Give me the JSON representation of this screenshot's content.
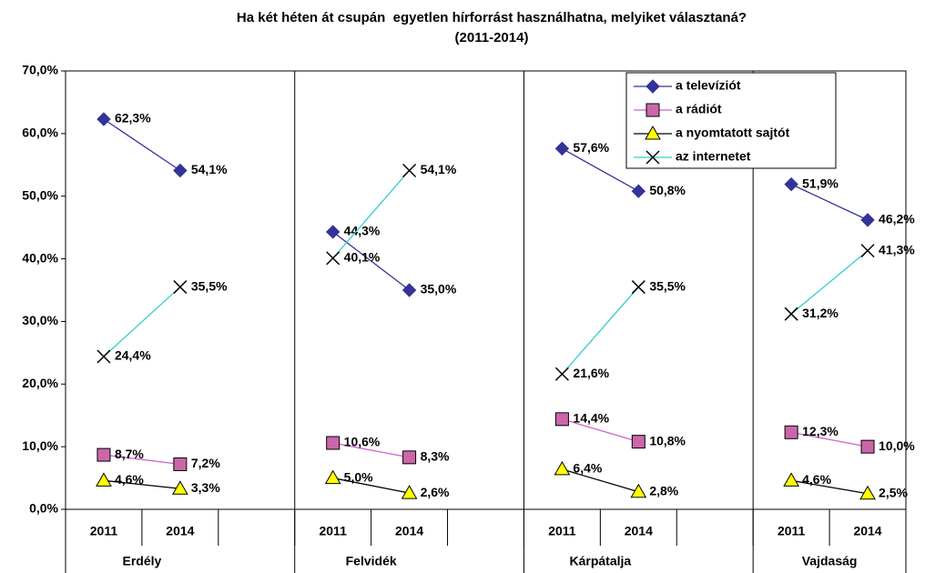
{
  "chart_data": {
    "type": "line",
    "title": "Ha két héten át csupán  egyetlen hírforrást használhatna, melyiket választaná?",
    "subtitle": "(2011-2014)",
    "categories": [
      "2011",
      "2014",
      null,
      "2011",
      "2014",
      null,
      "2011",
      "2014",
      null,
      "2011",
      "2014"
    ],
    "groups": [
      "Erdély",
      "Felvidék",
      "Kárpátalja",
      "Vajdaság"
    ],
    "ylim": [
      0,
      70
    ],
    "yticks": [
      {
        "value": 0,
        "label": "0,0%"
      },
      {
        "value": 10,
        "label": "10,0%"
      },
      {
        "value": 20,
        "label": "20,0%"
      },
      {
        "value": 30,
        "label": "30,0%"
      },
      {
        "value": 40,
        "label": "40,0%"
      },
      {
        "value": 50,
        "label": "50,0%"
      },
      {
        "value": 60,
        "label": "60,0%"
      },
      {
        "value": 70,
        "label": "70,0%"
      }
    ],
    "legend": "upper right",
    "series": [
      {
        "name": "a televíziót",
        "color": "#333399",
        "marker": "diamond",
        "values": [
          62.3,
          54.1,
          null,
          44.3,
          35.0,
          null,
          57.6,
          50.8,
          null,
          51.9,
          46.2
        ],
        "value_labels": [
          "62,3%",
          "54,1%",
          null,
          "44,3%",
          "35,0%",
          null,
          "57,6%",
          "50,8%",
          null,
          "51,9%",
          "46,2%"
        ]
      },
      {
        "name": "a rádiót",
        "color": "#cc66cc",
        "marker": "square",
        "values": [
          8.7,
          7.2,
          null,
          10.6,
          8.3,
          null,
          14.4,
          10.8,
          null,
          12.3,
          10.0
        ],
        "value_labels": [
          "8,7%",
          "7,2%",
          null,
          "10,6%",
          "8,3%",
          null,
          "14,4%",
          "10,8%",
          null,
          "12,3%",
          "10,0%"
        ]
      },
      {
        "name": "a nyomtatott sajtót",
        "color": "#000000",
        "marker": "triangle",
        "values": [
          4.6,
          3.3,
          null,
          5.0,
          2.6,
          null,
          6.4,
          2.8,
          null,
          4.6,
          2.5
        ],
        "value_labels": [
          "4,6%",
          "3,3%",
          null,
          "5,0%",
          "2,6%",
          null,
          "6,4%",
          "2,8%",
          null,
          "4,6%",
          "2,5%"
        ]
      },
      {
        "name": "az internetet",
        "color": "#33cccc",
        "marker": "x",
        "values": [
          24.4,
          35.5,
          null,
          40.1,
          54.1,
          null,
          21.6,
          35.5,
          null,
          31.2,
          41.3
        ],
        "value_labels": [
          "24,4%",
          "35,5%",
          null,
          "40,1%",
          "54,1%",
          null,
          "21,6%",
          "35,5%",
          null,
          "31,2%",
          "41,3%"
        ]
      }
    ]
  }
}
